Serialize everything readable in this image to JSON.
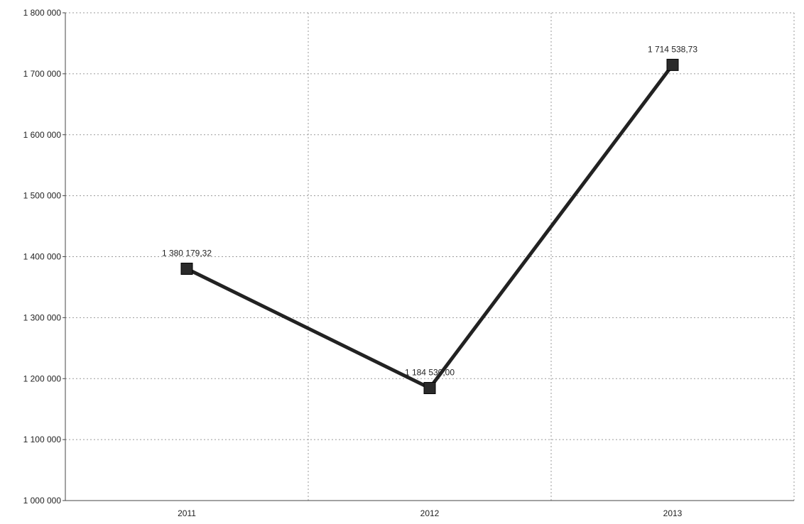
{
  "chart_data": {
    "type": "line",
    "categories": [
      "2011",
      "2012",
      "2013"
    ],
    "series": [
      {
        "values": [
          1380179.32,
          1184530.0,
          1714538.73
        ],
        "labels": [
          "1 380 179,32",
          "1 184 530,00",
          "1 714 538,73"
        ]
      }
    ],
    "y_ticks": [
      1000000,
      1100000,
      1200000,
      1300000,
      1400000,
      1500000,
      1600000,
      1700000,
      1800000
    ],
    "y_tick_labels": [
      "1 000 000",
      "1 100 000",
      "1 200 000",
      "1 300 000",
      "1 400 000",
      "1 500 000",
      "1 600 000",
      "1 700 000",
      "1 800 000"
    ],
    "ylim": [
      1000000,
      1800000
    ],
    "grid": true,
    "legend": "none",
    "colors": {
      "line": "#222222",
      "marker": "#2a2a2a",
      "grid": "#9a9a9a"
    }
  }
}
